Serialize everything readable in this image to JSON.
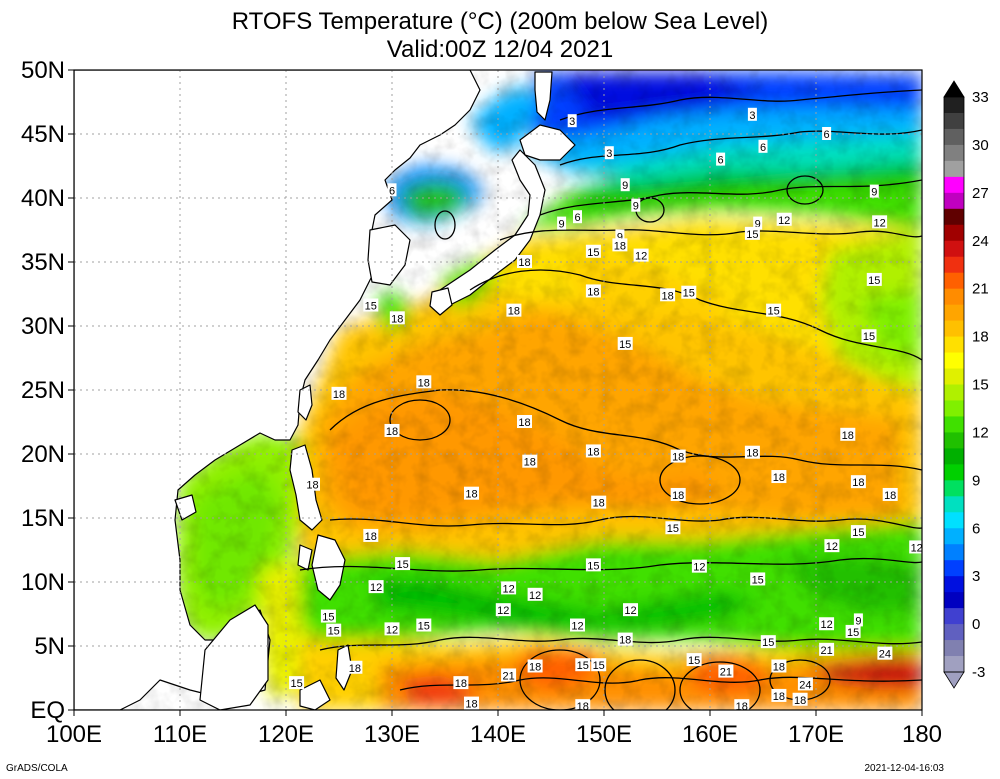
{
  "title": {
    "line1": "RTOFS Temperature (°C) (200m below Sea Level)",
    "line2": "Valid:00Z 12/04 2021"
  },
  "map": {
    "lon_range": [
      100,
      180
    ],
    "lat_range": [
      0,
      50
    ],
    "lon_ticks": [
      {
        "value": 100,
        "label": "100E"
      },
      {
        "value": 110,
        "label": "110E"
      },
      {
        "value": 120,
        "label": "120E"
      },
      {
        "value": 130,
        "label": "130E"
      },
      {
        "value": 140,
        "label": "140E"
      },
      {
        "value": 150,
        "label": "150E"
      },
      {
        "value": 160,
        "label": "160E"
      },
      {
        "value": 170,
        "label": "170E"
      },
      {
        "value": 180,
        "label": "180"
      }
    ],
    "lat_ticks": [
      {
        "value": 0,
        "label": "EQ"
      },
      {
        "value": 5,
        "label": "5N"
      },
      {
        "value": 10,
        "label": "10N"
      },
      {
        "value": 15,
        "label": "15N"
      },
      {
        "value": 20,
        "label": "20N"
      },
      {
        "value": 25,
        "label": "25N"
      },
      {
        "value": 30,
        "label": "30N"
      },
      {
        "value": 35,
        "label": "35N"
      },
      {
        "value": 40,
        "label": "40N"
      },
      {
        "value": 45,
        "label": "45N"
      },
      {
        "value": 50,
        "label": "50N"
      }
    ],
    "contour_labels": [
      {
        "lon": 147,
        "lat": 46,
        "text": "3"
      },
      {
        "lon": 150.5,
        "lat": 43.5,
        "text": "3"
      },
      {
        "lon": 164,
        "lat": 46.5,
        "text": "3"
      },
      {
        "lon": 130,
        "lat": 40.6,
        "text": "6"
      },
      {
        "lon": 147.5,
        "lat": 38.5,
        "text": "6"
      },
      {
        "lon": 161,
        "lat": 43,
        "text": "6"
      },
      {
        "lon": 165,
        "lat": 44,
        "text": "6"
      },
      {
        "lon": 171,
        "lat": 45,
        "text": "6"
      },
      {
        "lon": 152,
        "lat": 41,
        "text": "9"
      },
      {
        "lon": 146,
        "lat": 38,
        "text": "9"
      },
      {
        "lon": 153,
        "lat": 39.4,
        "text": "9"
      },
      {
        "lon": 151.5,
        "lat": 37,
        "text": "9"
      },
      {
        "lon": 164.5,
        "lat": 38,
        "text": "9"
      },
      {
        "lon": 175.5,
        "lat": 40.5,
        "text": "9"
      },
      {
        "lon": 174,
        "lat": 7,
        "text": "9"
      },
      {
        "lon": 153.5,
        "lat": 35.5,
        "text": "12"
      },
      {
        "lon": 167,
        "lat": 38.3,
        "text": "12"
      },
      {
        "lon": 176,
        "lat": 38.1,
        "text": "12"
      },
      {
        "lon": 149,
        "lat": 35.8,
        "text": "15"
      },
      {
        "lon": 164,
        "lat": 37.2,
        "text": "15"
      },
      {
        "lon": 128,
        "lat": 31.6,
        "text": "15"
      },
      {
        "lon": 158,
        "lat": 32.6,
        "text": "15"
      },
      {
        "lon": 166,
        "lat": 31.2,
        "text": "15"
      },
      {
        "lon": 175.5,
        "lat": 33.6,
        "text": "15"
      },
      {
        "lon": 175,
        "lat": 29.2,
        "text": "15"
      },
      {
        "lon": 152,
        "lat": 28.6,
        "text": "15"
      },
      {
        "lon": 151.5,
        "lat": 36.3,
        "text": "18"
      },
      {
        "lon": 142.5,
        "lat": 35,
        "text": "18"
      },
      {
        "lon": 130.5,
        "lat": 30.6,
        "text": "18"
      },
      {
        "lon": 141.5,
        "lat": 31.2,
        "text": "18"
      },
      {
        "lon": 149,
        "lat": 32.7,
        "text": "18"
      },
      {
        "lon": 156,
        "lat": 32.4,
        "text": "18"
      },
      {
        "lon": 133,
        "lat": 25.6,
        "text": "18"
      },
      {
        "lon": 125,
        "lat": 24.7,
        "text": "18"
      },
      {
        "lon": 142.5,
        "lat": 22.5,
        "text": "18"
      },
      {
        "lon": 130,
        "lat": 21.8,
        "text": "18"
      },
      {
        "lon": 143,
        "lat": 19.4,
        "text": "18"
      },
      {
        "lon": 149,
        "lat": 20.2,
        "text": "18"
      },
      {
        "lon": 157,
        "lat": 19.8,
        "text": "18"
      },
      {
        "lon": 164,
        "lat": 20.1,
        "text": "18"
      },
      {
        "lon": 173,
        "lat": 21.5,
        "text": "18"
      },
      {
        "lon": 122.5,
        "lat": 17.6,
        "text": "18"
      },
      {
        "lon": 137.5,
        "lat": 16.9,
        "text": "18"
      },
      {
        "lon": 149.5,
        "lat": 16.2,
        "text": "18"
      },
      {
        "lon": 157,
        "lat": 16.8,
        "text": "18"
      },
      {
        "lon": 166.5,
        "lat": 18.2,
        "text": "18"
      },
      {
        "lon": 174,
        "lat": 17.8,
        "text": "18"
      },
      {
        "lon": 177,
        "lat": 16.8,
        "text": "18"
      },
      {
        "lon": 128,
        "lat": 13.6,
        "text": "18"
      },
      {
        "lon": 156.5,
        "lat": 14.2,
        "text": "15"
      },
      {
        "lon": 174,
        "lat": 13.9,
        "text": "15"
      },
      {
        "lon": 131,
        "lat": 11.4,
        "text": "15"
      },
      {
        "lon": 149,
        "lat": 11.3,
        "text": "15"
      },
      {
        "lon": 164.5,
        "lat": 10.2,
        "text": "15"
      },
      {
        "lon": 124,
        "lat": 7.3,
        "text": "15"
      },
      {
        "lon": 124.5,
        "lat": 6.2,
        "text": "15"
      },
      {
        "lon": 133,
        "lat": 6.6,
        "text": "15"
      },
      {
        "lon": 165.5,
        "lat": 5.3,
        "text": "15"
      },
      {
        "lon": 173.5,
        "lat": 6.1,
        "text": "15"
      },
      {
        "lon": 149.5,
        "lat": 3.5,
        "text": "15"
      },
      {
        "lon": 148,
        "lat": 3.5,
        "text": "15"
      },
      {
        "lon": 158.5,
        "lat": 3.9,
        "text": "15"
      },
      {
        "lon": 121,
        "lat": 2.1,
        "text": "15"
      },
      {
        "lon": 171.5,
        "lat": 12.8,
        "text": "12"
      },
      {
        "lon": 179.5,
        "lat": 12.7,
        "text": "12"
      },
      {
        "lon": 159,
        "lat": 11.2,
        "text": "12"
      },
      {
        "lon": 128.5,
        "lat": 9.6,
        "text": "12"
      },
      {
        "lon": 141,
        "lat": 9.5,
        "text": "12"
      },
      {
        "lon": 143.5,
        "lat": 9,
        "text": "12"
      },
      {
        "lon": 140.5,
        "lat": 7.8,
        "text": "12"
      },
      {
        "lon": 152.5,
        "lat": 7.8,
        "text": "12"
      },
      {
        "lon": 130,
        "lat": 6.3,
        "text": "12"
      },
      {
        "lon": 147.5,
        "lat": 6.6,
        "text": "12"
      },
      {
        "lon": 171,
        "lat": 6.7,
        "text": "12"
      },
      {
        "lon": 152,
        "lat": 5.5,
        "text": "18"
      },
      {
        "lon": 126.5,
        "lat": 3.3,
        "text": "18"
      },
      {
        "lon": 143.5,
        "lat": 3.4,
        "text": "18"
      },
      {
        "lon": 166.5,
        "lat": 3.4,
        "text": "18"
      },
      {
        "lon": 136.5,
        "lat": 2.1,
        "text": "18"
      },
      {
        "lon": 166.5,
        "lat": 1.1,
        "text": "18"
      },
      {
        "lon": 168.5,
        "lat": 0.8,
        "text": "18"
      },
      {
        "lon": 137.5,
        "lat": 0.5,
        "text": "18"
      },
      {
        "lon": 148,
        "lat": 0.3,
        "text": "18"
      },
      {
        "lon": 163,
        "lat": 0.3,
        "text": "18"
      },
      {
        "lon": 171,
        "lat": 4.7,
        "text": "21"
      },
      {
        "lon": 141,
        "lat": 2.7,
        "text": "21"
      },
      {
        "lon": 161.5,
        "lat": 3,
        "text": "21"
      },
      {
        "lon": 176.5,
        "lat": 4.4,
        "text": "24"
      },
      {
        "lon": 169,
        "lat": 2,
        "text": "24"
      }
    ]
  },
  "colorbar": {
    "labels": [
      "33",
      "30",
      "27",
      "24",
      "21",
      "18",
      "15",
      "12",
      "9",
      "6",
      "3",
      "0",
      "-3"
    ],
    "colors_top_to_bottom": [
      "#202020",
      "#404040",
      "#606060",
      "#808080",
      "#a0a0a0",
      "#ff00ff",
      "#c000c0",
      "#600000",
      "#a00000",
      "#d01010",
      "#f03010",
      "#ff6000",
      "#ff8c00",
      "#ffa500",
      "#ffc000",
      "#ffe000",
      "#ffff00",
      "#e0f000",
      "#b0f000",
      "#80f000",
      "#40e000",
      "#20c000",
      "#00b000",
      "#00d000",
      "#00e060",
      "#00e0c0",
      "#00e0ff",
      "#00b0ff",
      "#0080ff",
      "#0040ff",
      "#0010e0",
      "#0000c0",
      "#4040d0",
      "#6060c0",
      "#8080b0",
      "#a0a0c0"
    ]
  },
  "footer": {
    "left": "GrADS/COLA",
    "right": "2021-12-04-16:03"
  }
}
